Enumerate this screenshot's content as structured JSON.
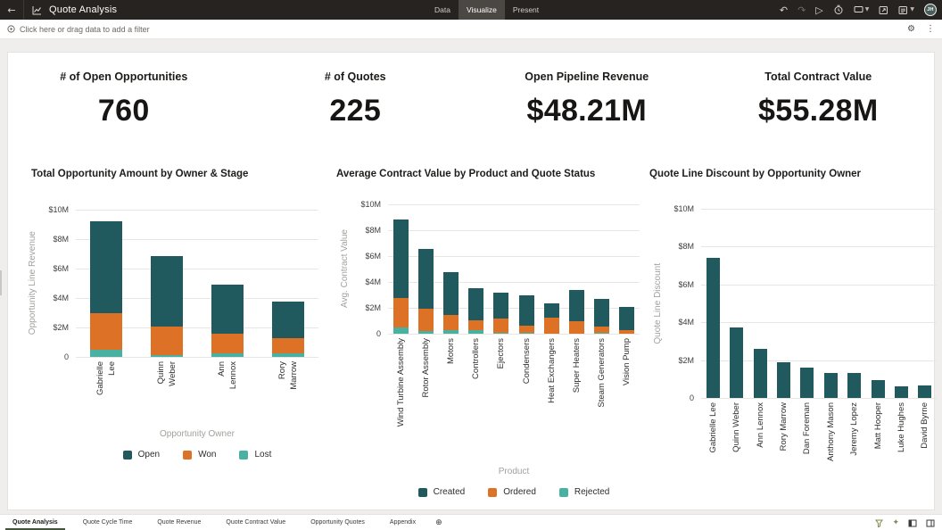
{
  "header": {
    "title": "Quote Analysis",
    "back_label": "←",
    "mode_tabs": [
      {
        "label": "Data",
        "active": false
      },
      {
        "label": "Visualize",
        "active": true
      },
      {
        "label": "Present",
        "active": false
      }
    ],
    "action_icons": [
      "undo",
      "redo",
      "play",
      "schedule",
      "comment",
      "export",
      "version"
    ],
    "avatar_initials": "JH"
  },
  "filter_bar": {
    "hint": "Click here or drag data to add a filter",
    "icons": [
      "filter-target",
      "gear",
      "kebab-menu"
    ]
  },
  "kpis": [
    {
      "label": "# of Open Opportunities",
      "value": "760"
    },
    {
      "label": "# of Quotes",
      "value": "225"
    },
    {
      "label": "Open Pipeline Revenue",
      "value": "$48.21M"
    },
    {
      "label": "Total Contract Value",
      "value": "$55.28M"
    }
  ],
  "colors": {
    "teal_dark": "#215a5e",
    "orange": "#dd7227",
    "teal_light": "#48b1a1",
    "active_tab_underline": "#44533b"
  },
  "chart_data": [
    {
      "type": "bar",
      "stacked": true,
      "title": "Total Opportunity Amount by Owner & Stage",
      "xlabel": "Opportunity Owner",
      "ylabel": "Opportunity Line Revenue",
      "unit": "USD millions",
      "ymax_millions": 10,
      "ytick_labels": [
        "$10M",
        "$8M",
        "$6M",
        "$4M",
        "$2M",
        "0"
      ],
      "categories": [
        "Gabrielle Lee",
        "Quinn Weber",
        "Ann Lennox",
        "Rory Marrow"
      ],
      "series": [
        {
          "name": "Lost",
          "color": "#48b1a1",
          "values": [
            0.48,
            0.15,
            0.25,
            0.22
          ]
        },
        {
          "name": "Won",
          "color": "#dd7227",
          "values": [
            2.5,
            1.9,
            1.3,
            1.05
          ]
        },
        {
          "name": "Open",
          "color": "#215a5e",
          "values": [
            6.25,
            4.8,
            3.35,
            2.5
          ]
        }
      ],
      "legend": [
        {
          "label": "Open",
          "color": "#215a5e"
        },
        {
          "label": "Won",
          "color": "#dd7227"
        },
        {
          "label": "Lost",
          "color": "#48b1a1"
        }
      ]
    },
    {
      "type": "bar",
      "stacked": true,
      "title": "Average Contract Value by Product and Quote Status",
      "xlabel": "Product",
      "ylabel": "Avg. Contract Value",
      "unit": "USD millions",
      "ymax_millions": 10,
      "ytick_labels": [
        "$10M",
        "$8M",
        "$6M",
        "$4M",
        "$2M",
        "0"
      ],
      "categories": [
        "Wind Turbine Assembly",
        "Rotor Assembly",
        "Motors",
        "Controllers",
        "Ejectors",
        "Condensers",
        "Heat Exchangers",
        "Super Heaters",
        "Steam Generators",
        "Vision Pump"
      ],
      "series": [
        {
          "name": "Rejected",
          "color": "#48b1a1",
          "values": [
            0.45,
            0.2,
            0.25,
            0.25,
            0.1,
            0.05,
            0,
            0,
            0.05,
            0
          ]
        },
        {
          "name": "Ordered",
          "color": "#dd7227",
          "values": [
            2.3,
            1.75,
            1.2,
            0.8,
            1.05,
            0.55,
            1.25,
            1.0,
            0.5,
            0.25
          ]
        },
        {
          "name": "Created",
          "color": "#215a5e",
          "values": [
            6.1,
            4.6,
            3.3,
            2.5,
            2.05,
            2.35,
            1.1,
            2.35,
            2.15,
            1.85
          ]
        }
      ],
      "legend": [
        {
          "label": "Created",
          "color": "#215a5e"
        },
        {
          "label": "Ordered",
          "color": "#dd7227"
        },
        {
          "label": "Rejected",
          "color": "#48b1a1"
        }
      ]
    },
    {
      "type": "bar",
      "stacked": false,
      "title": "Quote Line Discount by Opportunity Owner",
      "xlabel": "",
      "ylabel": "Quote Line Discount",
      "unit": "USD millions",
      "ymax_millions": 10,
      "ytick_labels": [
        "$10M",
        "$8M",
        "$6M",
        "$4M",
        "$2M",
        "0"
      ],
      "categories": [
        "Gabrielle Lee",
        "Quinn Weber",
        "Ann Lennox",
        "Rory Marrow",
        "Dan Foreman",
        "Anthony Mason",
        "Jeremy Lopez",
        "Matt Hooper",
        "Luke Hughes",
        "David Byrne"
      ],
      "series": [
        {
          "name": "Quote Line Discount",
          "color": "#215a5e",
          "values": [
            7.4,
            3.75,
            2.6,
            1.9,
            1.6,
            1.3,
            1.3,
            0.95,
            0.6,
            0.65
          ]
        }
      ],
      "legend": []
    }
  ],
  "footer": {
    "tabs": [
      {
        "label": "Quote Analysis",
        "active": true
      },
      {
        "label": "Quote Cycle Time",
        "active": false
      },
      {
        "label": "Quote Revenue",
        "active": false
      },
      {
        "label": "Quote Contract Value",
        "active": false
      },
      {
        "label": "Opportunity Quotes",
        "active": false
      },
      {
        "label": "Appendix",
        "active": false
      }
    ],
    "add_tab_glyph": "⊕",
    "right_icons": [
      "funnel",
      "ai-sparkle",
      "panel-left",
      "panel-right"
    ]
  }
}
